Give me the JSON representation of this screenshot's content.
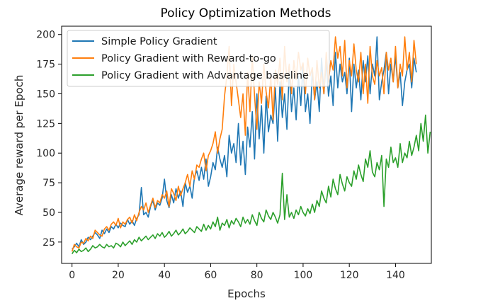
{
  "chart_data": {
    "type": "line",
    "title": "Policy Optimization Methods",
    "xlabel": "Epochs",
    "ylabel": "Average reward per Epoch",
    "xlim": [
      -4.5,
      155.5
    ],
    "ylim": [
      7,
      207
    ],
    "xticks": [
      0,
      20,
      40,
      60,
      80,
      100,
      120,
      140
    ],
    "yticks": [
      25,
      50,
      75,
      100,
      125,
      150,
      175,
      200
    ],
    "grid": false,
    "legend_position": "top-left",
    "series": [
      {
        "name": "Simple Policy Gradient",
        "color": "#1f77b4",
        "values": [
          19,
          21,
          24,
          21,
          27,
          23,
          25,
          29,
          27,
          30,
          33,
          31,
          28,
          35,
          32,
          36,
          33,
          38,
          36,
          40,
          37,
          41,
          39,
          38,
          44,
          40,
          43,
          39,
          45,
          48,
          71,
          48,
          50,
          46,
          55,
          60,
          52,
          58,
          56,
          62,
          78,
          60,
          54,
          65,
          58,
          70,
          62,
          68,
          55,
          75,
          67,
          72,
          62,
          80,
          85,
          77,
          88,
          78,
          95,
          72,
          80,
          92,
          86,
          105,
          95,
          88,
          98,
          80,
          115,
          100,
          108,
          92,
          125,
          90,
          110,
          82,
          122,
          105,
          135,
          95,
          150,
          112,
          140,
          100,
          148,
          118,
          132,
          125,
          155,
          110,
          160,
          130,
          150,
          120,
          170,
          135,
          155,
          128,
          165,
          140,
          175,
          135,
          150,
          125,
          170,
          145,
          160,
          135,
          180,
          150,
          178,
          148,
          165,
          140,
          185,
          155,
          175,
          160,
          168,
          150,
          180,
          135,
          175,
          155,
          170,
          145,
          178,
          160,
          182,
          150,
          175,
          165,
          198,
          145,
          160,
          170,
          185,
          150,
          175,
          160,
          182,
          155,
          168,
          140,
          160,
          170,
          175,
          155,
          180,
          168
        ]
      },
      {
        "name": "Policy Gradient with Reward-to-go",
        "color": "#ff7f0e",
        "values": [
          17,
          23,
          21,
          20,
          25,
          24,
          28,
          26,
          30,
          28,
          35,
          33,
          31,
          30,
          36,
          38,
          35,
          40,
          42,
          39,
          45,
          37,
          42,
          40,
          44,
          46,
          41,
          48,
          43,
          50,
          55,
          52,
          58,
          50,
          56,
          62,
          54,
          60,
          58,
          65,
          62,
          68,
          55,
          70,
          66,
          60,
          72,
          64,
          70,
          75,
          82,
          72,
          85,
          78,
          90,
          88,
          95,
          100,
          85,
          98,
          102,
          108,
          118,
          100,
          112,
          120,
          148,
          165,
          190,
          140,
          175,
          160,
          145,
          130,
          150,
          115,
          168,
          135,
          182,
          148,
          120,
          160,
          142,
          175,
          152,
          138,
          165,
          128,
          170,
          158,
          180,
          145,
          190,
          160,
          175,
          150,
          178,
          162,
          185,
          170,
          176,
          150,
          180,
          165,
          172,
          145,
          178,
          155,
          168,
          150,
          185,
          160,
          178,
          170,
          198,
          180,
          190,
          165,
          195,
          155,
          178,
          165,
          192,
          170,
          160,
          185,
          150,
          175,
          142,
          190,
          165,
          158,
          178,
          165,
          172,
          150,
          185,
          170,
          180,
          160,
          190,
          155,
          175,
          165,
          198,
          170,
          185,
          160,
          195,
          175
        ]
      },
      {
        "name": "Policy Gradient with Advantage baseline",
        "color": "#2ca02c",
        "values": [
          15,
          18,
          16,
          19,
          17,
          18,
          20,
          17,
          19,
          22,
          20,
          21,
          23,
          21,
          20,
          23,
          21,
          22,
          20,
          24,
          23,
          21,
          25,
          22,
          24,
          26,
          23,
          27,
          25,
          29,
          26,
          28,
          30,
          27,
          29,
          31,
          28,
          32,
          30,
          33,
          29,
          31,
          34,
          30,
          32,
          35,
          31,
          33,
          36,
          32,
          34,
          37,
          35,
          33,
          38,
          36,
          34,
          40,
          35,
          39,
          36,
          42,
          38,
          46,
          35,
          41,
          39,
          44,
          37,
          43,
          40,
          45,
          42,
          38,
          46,
          41,
          44,
          40,
          48,
          43,
          39,
          50,
          45,
          42,
          52,
          47,
          44,
          50,
          46,
          41,
          48,
          83,
          44,
          65,
          46,
          50,
          45,
          52,
          48,
          55,
          50,
          47,
          53,
          49,
          57,
          50,
          60,
          55,
          68,
          62,
          58,
          72,
          63,
          78,
          70,
          65,
          82,
          74,
          68,
          80,
          75,
          72,
          85,
          78,
          90,
          82,
          76,
          95,
          88,
          102,
          84,
          80,
          92,
          86,
          98,
          55,
          95,
          88,
          105,
          92,
          96,
          88,
          108,
          92,
          100,
          96,
          110,
          98,
          105,
          115,
          102,
          125,
          110,
          132,
          100,
          118
        ]
      }
    ]
  }
}
